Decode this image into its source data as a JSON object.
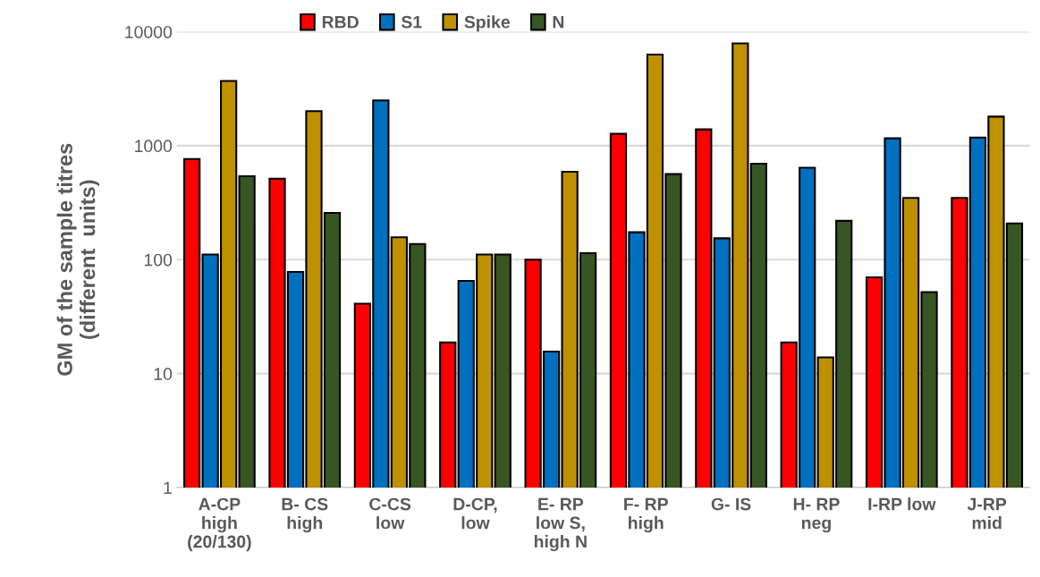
{
  "chart_data": {
    "type": "bar",
    "ylabel": "GM of the sample titres\n(different  units)",
    "categories": [
      "A-CP\nhigh\n(20/130)",
      "B- CS\nhigh",
      "C-CS\nlow",
      "D-CP,\nlow",
      "E- RP\nlow S,\nhigh N",
      "F- RP\nhigh",
      "G- IS",
      "H- RP\nneg",
      "I-RP low",
      "J-RP\nmid"
    ],
    "series": [
      {
        "name": "RBD",
        "color": "#ff0000",
        "values": [
          765,
          514,
          41,
          18.8,
          100,
          1270,
          1390,
          18.8,
          70,
          348
        ]
      },
      {
        "name": "S1",
        "color": "#0070c0",
        "values": [
          111,
          78,
          2500,
          65,
          15.6,
          174,
          154,
          640,
          1160,
          1180
        ]
      },
      {
        "name": "Spike",
        "color": "#bf9000",
        "values": [
          3700,
          2010,
          157,
          111,
          590,
          6300,
          7900,
          13.9,
          348,
          1800
        ]
      },
      {
        "name": "N",
        "color": "#375623",
        "values": [
          540,
          257,
          137,
          111,
          114,
          563,
          695,
          219,
          52,
          208
        ]
      }
    ],
    "log": true,
    "ylim": [
      1,
      10000
    ],
    "yticks": [
      1,
      10,
      100,
      1000,
      10000
    ],
    "grid": "y",
    "legend": "top"
  }
}
